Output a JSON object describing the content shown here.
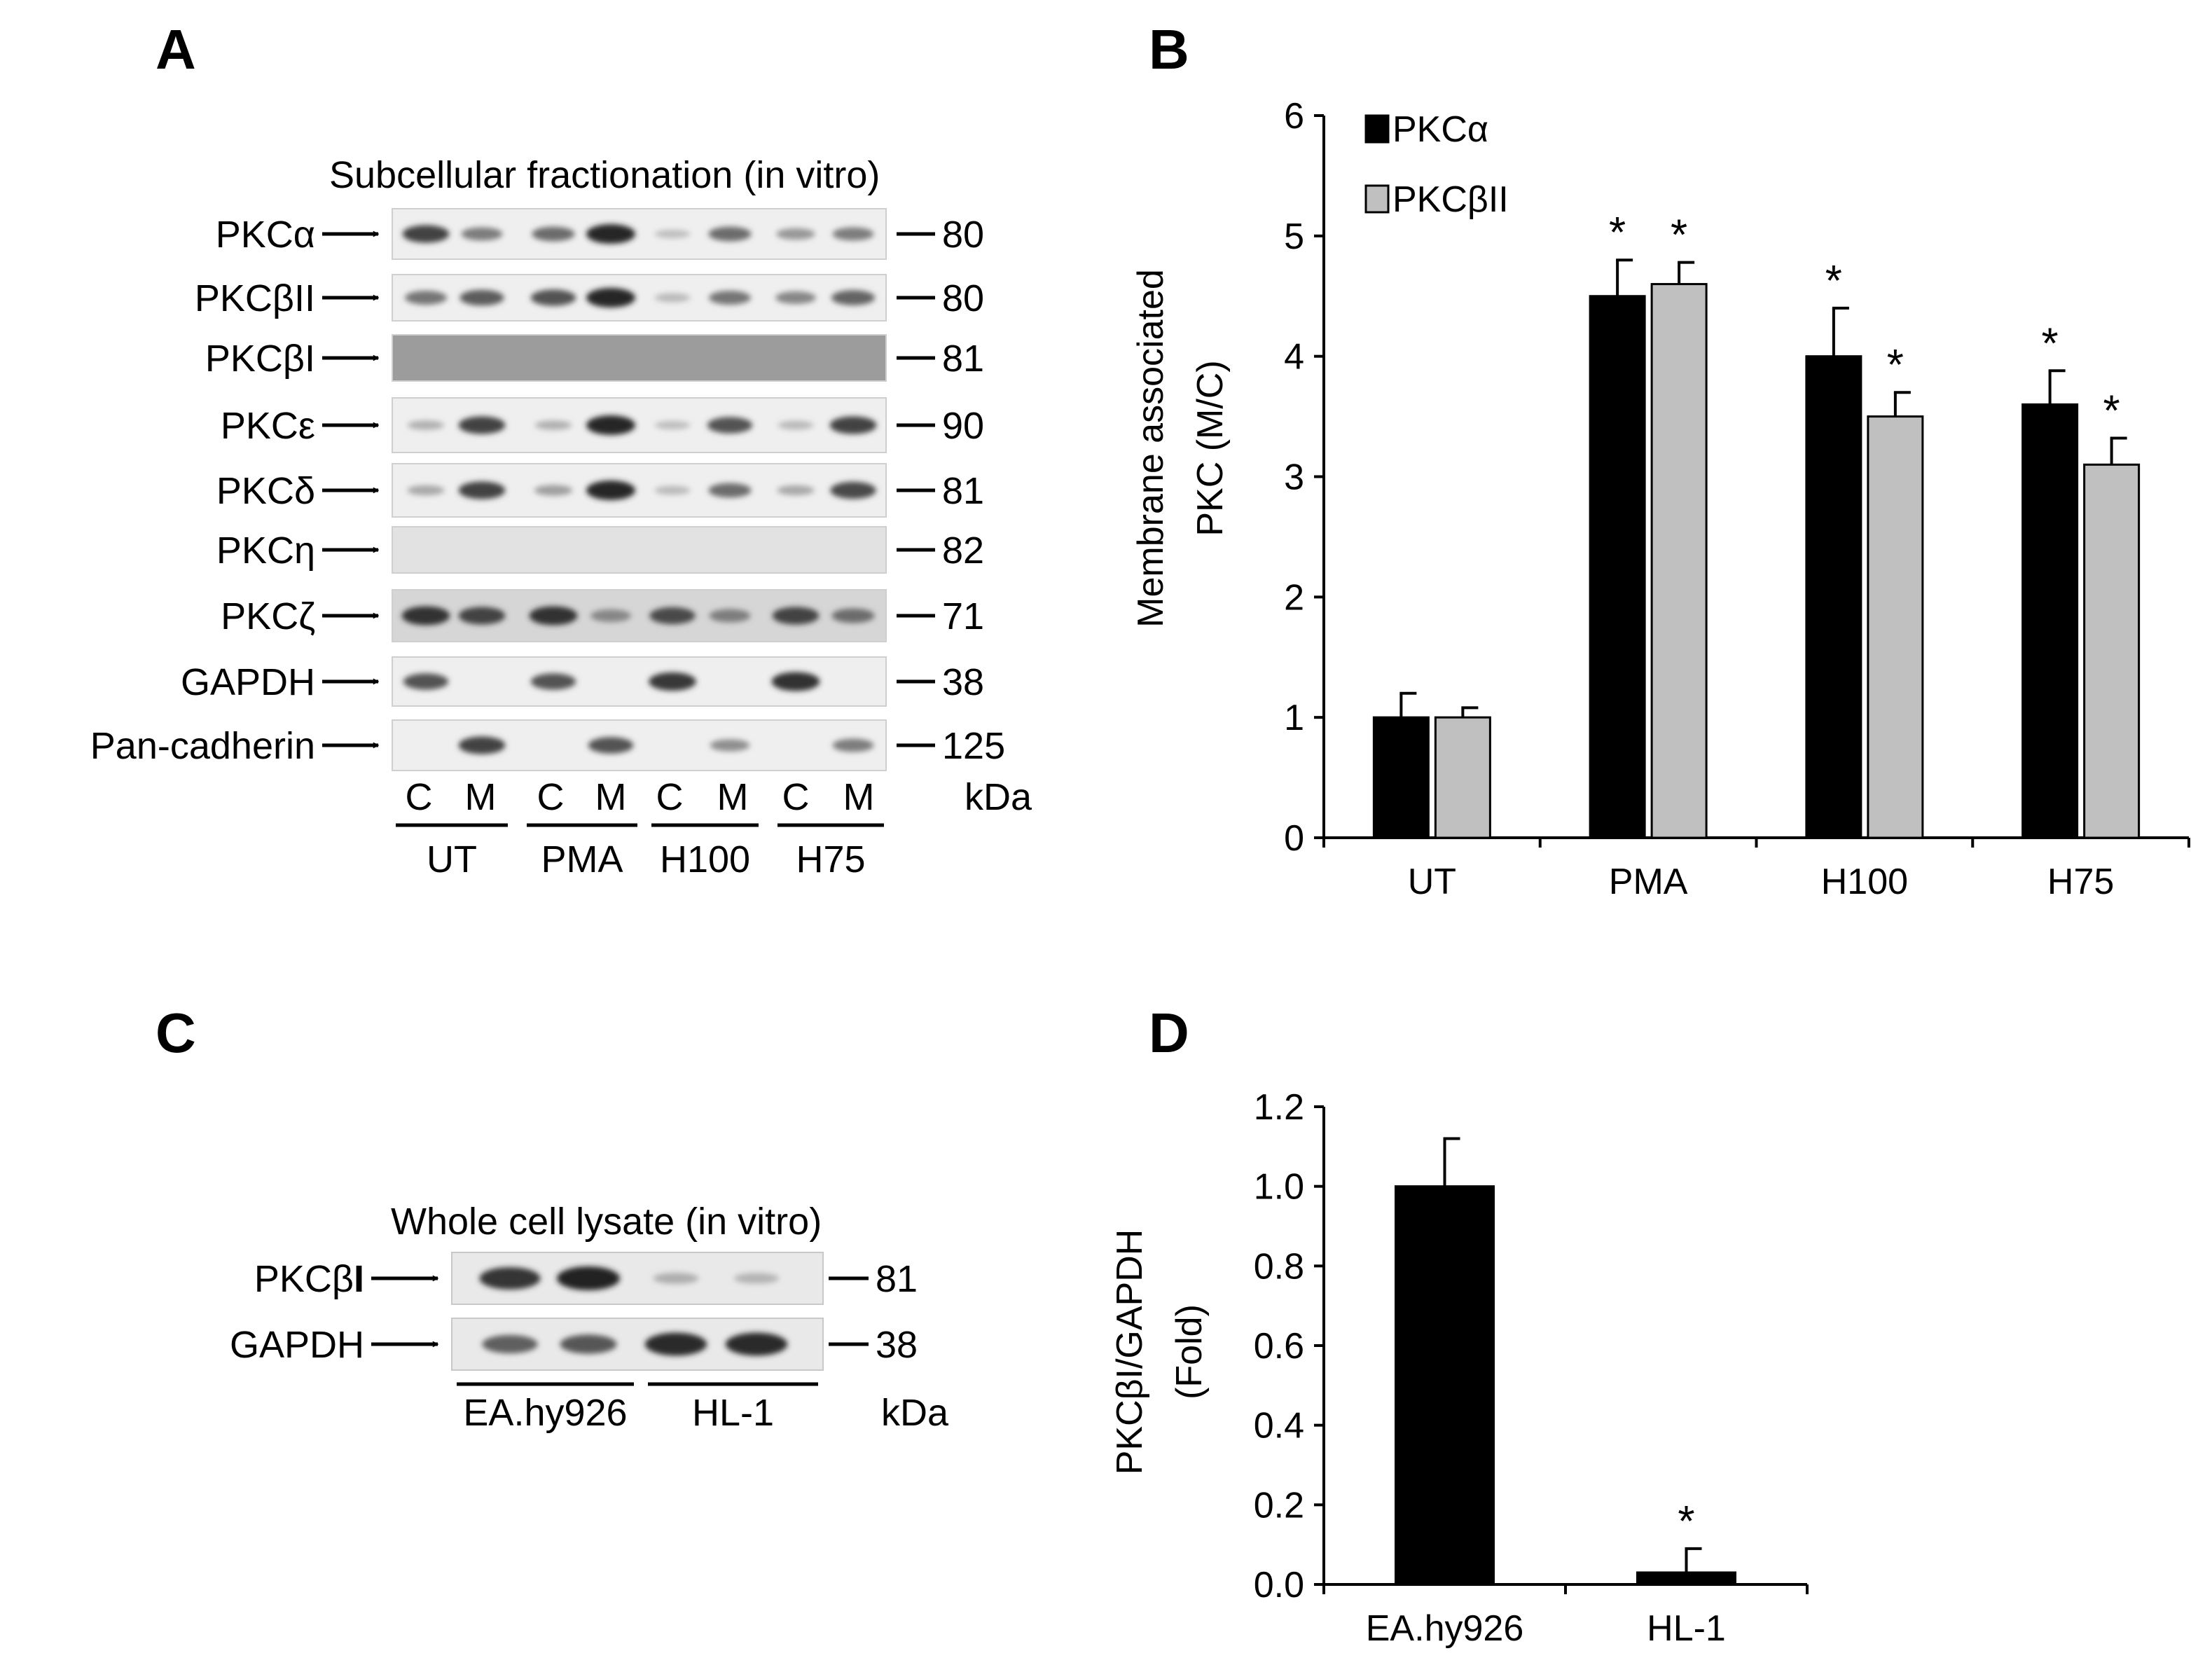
{
  "panels": {
    "A": {
      "letter": "A",
      "title": "Subcellular  fractionation (in vitro)",
      "unit": "kDa",
      "blots": [
        {
          "label": "PKCα",
          "mw": "80"
        },
        {
          "label": "PKCβII",
          "mw": "80"
        },
        {
          "label": "PKCβI",
          "mw": "81"
        },
        {
          "label": "PKCε",
          "mw": "90"
        },
        {
          "label": "PKCδ",
          "mw": "81"
        },
        {
          "label": "PKCη",
          "mw": "82"
        },
        {
          "label": "PKCζ",
          "mw": "71"
        },
        {
          "label": "GAPDH",
          "mw": "38"
        },
        {
          "label": "Pan-cadherin",
          "mw": "125"
        }
      ],
      "lanes": [
        "C",
        "M",
        "C",
        "M",
        "C",
        "M",
        "C",
        "M"
      ],
      "groups": [
        "UT",
        "PMA",
        "H100",
        "H75"
      ]
    },
    "B": {
      "letter": "B"
    },
    "C": {
      "letter": "C",
      "title": "Whole cell lysate (in vitro)",
      "unit": "kDa",
      "blots": [
        {
          "label_prefix": "PKCβ",
          "label_suffix": "I",
          "mw": "81"
        },
        {
          "label": "GAPDH",
          "mw": "38"
        }
      ],
      "groups": [
        "EA.hy926",
        "HL-1"
      ]
    },
    "D": {
      "letter": "D"
    }
  },
  "chart_data": [
    {
      "type": "bar",
      "panel": "B",
      "categories": [
        "UT",
        "PMA",
        "H100",
        "H75"
      ],
      "series": [
        {
          "name": "PKCα",
          "color": "#000000",
          "values": [
            1.0,
            4.5,
            4.0,
            3.6
          ],
          "errors": [
            0.2,
            0.3,
            0.4,
            0.28
          ],
          "significance": [
            "",
            "*",
            "*",
            "*"
          ]
        },
        {
          "name": "PKCβII",
          "color": "#c0c0c0",
          "values": [
            1.0,
            4.6,
            3.5,
            3.1
          ],
          "errors": [
            0.08,
            0.18,
            0.2,
            0.22
          ],
          "significance": [
            "",
            "*",
            "*",
            "*"
          ]
        }
      ],
      "ylabel_line1": "Membrane associated",
      "ylabel_line2": "PKC (M/C)",
      "ylim": [
        0,
        6
      ],
      "yticks": [
        "0",
        "1",
        "2",
        "3",
        "4",
        "5",
        "6"
      ],
      "legend_position": "top-left"
    },
    {
      "type": "bar",
      "panel": "D",
      "categories": [
        "EA.hy926",
        "HL-1"
      ],
      "series": [
        {
          "color": "#000000",
          "values": [
            1.0,
            0.03
          ],
          "errors": [
            0.12,
            0.06
          ],
          "significance": [
            "",
            "*"
          ]
        }
      ],
      "ylabel_line1": "PKCβI/GAPDH",
      "ylabel_line2": "(Fold)",
      "ylim": [
        0,
        1.2
      ],
      "yticks": [
        "0.0",
        "0.2",
        "0.4",
        "0.6",
        "0.8",
        "1.0",
        "1.2"
      ]
    }
  ]
}
